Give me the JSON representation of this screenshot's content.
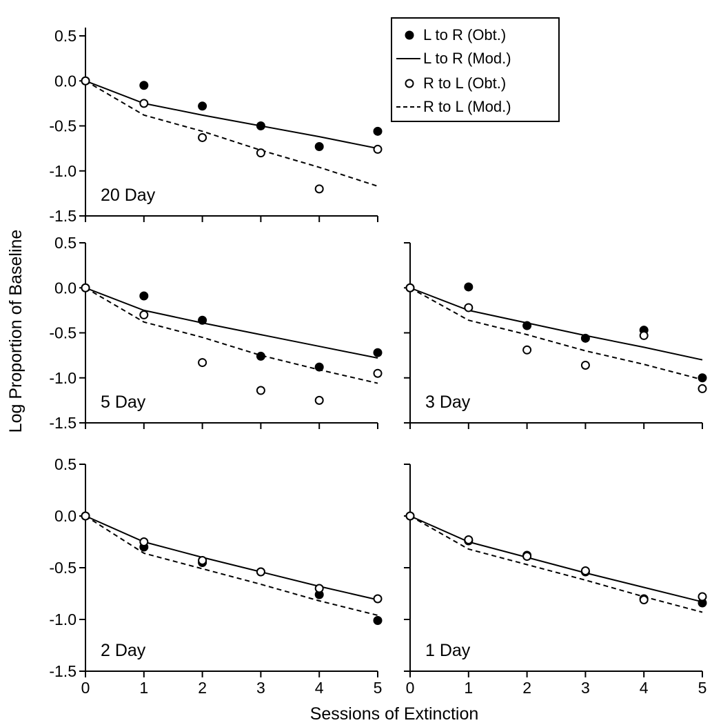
{
  "figure": {
    "ylabel": "Log Proportion of Baseline",
    "xlabel": "Sessions of Extinction"
  },
  "legend": {
    "position": "top-right",
    "entries": [
      {
        "label": "L to R (Obt.)",
        "style": "filled-circle"
      },
      {
        "label": "L to R (Mod.)",
        "style": "solid-line"
      },
      {
        "label": "R to L (Obt.)",
        "style": "open-circle"
      },
      {
        "label": "R to L (Mod.)",
        "style": "dashed-line"
      }
    ]
  },
  "axes": {
    "xlim": [
      0,
      5
    ],
    "ylim": [
      -1.5,
      0.5
    ],
    "xticks": [
      "0",
      "1",
      "2",
      "3",
      "4",
      "5"
    ],
    "yticks": [
      "0.5",
      "0.0",
      "-0.5",
      "-1.0",
      "-1.5"
    ],
    "grid": false
  },
  "colors": {
    "ink": "#000000",
    "background": "#ffffff"
  },
  "chart_data": [
    {
      "type": "line",
      "panel_label": "20 Day",
      "x": [
        0,
        1,
        2,
        3,
        4,
        5
      ],
      "series": [
        {
          "name": "L to R (Obt.)",
          "values": [
            0.0,
            -0.05,
            -0.28,
            -0.5,
            -0.73,
            -0.56
          ]
        },
        {
          "name": "L to R (Mod.)",
          "values": [
            0.0,
            -0.25,
            -0.38,
            -0.5,
            -0.62,
            -0.75
          ]
        },
        {
          "name": "R to L (Obt.)",
          "values": [
            0.0,
            -0.25,
            -0.63,
            -0.8,
            -1.2,
            -0.76
          ]
        },
        {
          "name": "R to L (Mod.)",
          "values": [
            0.0,
            -0.38,
            -0.56,
            -0.77,
            -0.96,
            -1.17
          ]
        }
      ]
    },
    {
      "type": "line",
      "panel_label": "5 Day",
      "x": [
        0,
        1,
        2,
        3,
        4,
        5
      ],
      "series": [
        {
          "name": "L to R (Obt.)",
          "values": [
            0.0,
            -0.09,
            -0.36,
            -0.76,
            -0.88,
            -0.72
          ]
        },
        {
          "name": "L to R (Mod.)",
          "values": [
            0.0,
            -0.25,
            -0.39,
            -0.52,
            -0.65,
            -0.78
          ]
        },
        {
          "name": "R to L (Obt.)",
          "values": [
            0.0,
            -0.3,
            -0.83,
            -1.14,
            -1.25,
            -0.95
          ]
        },
        {
          "name": "R to L (Mod.)",
          "values": [
            0.0,
            -0.38,
            -0.55,
            -0.75,
            -0.91,
            -1.06
          ]
        }
      ]
    },
    {
      "type": "line",
      "panel_label": "3 Day",
      "x": [
        0,
        1,
        2,
        3,
        4,
        5
      ],
      "series": [
        {
          "name": "L to R (Obt.)",
          "values": [
            0.0,
            0.01,
            -0.42,
            -0.56,
            -0.47,
            -1.0
          ]
        },
        {
          "name": "L to R (Mod.)",
          "values": [
            0.0,
            -0.25,
            -0.39,
            -0.53,
            -0.66,
            -0.8
          ]
        },
        {
          "name": "R to L (Obt.)",
          "values": [
            0.0,
            -0.22,
            -0.69,
            -0.86,
            -0.53,
            -1.12
          ]
        },
        {
          "name": "R to L (Mod.)",
          "values": [
            0.0,
            -0.36,
            -0.52,
            -0.7,
            -0.85,
            -1.02
          ]
        }
      ]
    },
    {
      "type": "line",
      "panel_label": "2 Day",
      "x": [
        0,
        1,
        2,
        3,
        4,
        5
      ],
      "series": [
        {
          "name": "L to R (Obt.)",
          "values": [
            0.0,
            -0.3,
            -0.45,
            -0.54,
            -0.76,
            -1.01
          ]
        },
        {
          "name": "L to R (Mod.)",
          "values": [
            0.0,
            -0.25,
            -0.4,
            -0.54,
            -0.68,
            -0.81
          ]
        },
        {
          "name": "R to L (Obt.)",
          "values": [
            0.0,
            -0.25,
            -0.43,
            -0.54,
            -0.7,
            -0.8
          ]
        },
        {
          "name": "R to L (Mod.)",
          "values": [
            0.0,
            -0.36,
            -0.51,
            -0.66,
            -0.82,
            -0.96
          ]
        }
      ]
    },
    {
      "type": "line",
      "panel_label": "1 Day",
      "x": [
        0,
        1,
        2,
        3,
        4,
        5
      ],
      "series": [
        {
          "name": "L to R (Obt.)",
          "values": [
            0.0,
            -0.24,
            -0.38,
            -0.54,
            -0.8,
            -0.84
          ]
        },
        {
          "name": "L to R (Mod.)",
          "values": [
            0.0,
            -0.25,
            -0.4,
            -0.55,
            -0.69,
            -0.83
          ]
        },
        {
          "name": "R to L (Obt.)",
          "values": [
            0.0,
            -0.23,
            -0.39,
            -0.53,
            -0.81,
            -0.78
          ]
        },
        {
          "name": "R to L (Mod.)",
          "values": [
            0.0,
            -0.32,
            -0.47,
            -0.62,
            -0.78,
            -0.93
          ]
        }
      ]
    }
  ]
}
